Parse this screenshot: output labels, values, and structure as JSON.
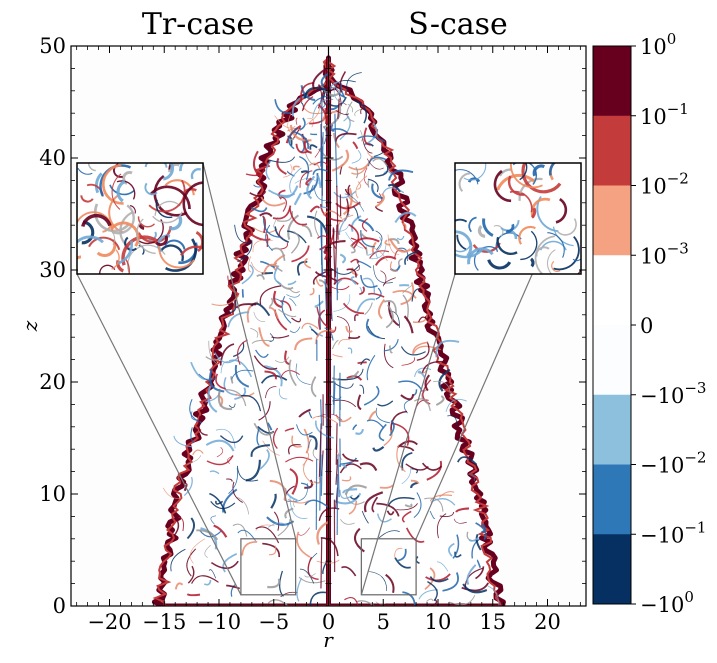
{
  "chart_data": {
    "type": "heatmap",
    "panels": [
      {
        "title": "Tr-case"
      },
      {
        "title": "S-case"
      }
    ],
    "xlabel": "r",
    "ylabel": "z",
    "xlim": [
      -23.5,
      23.5
    ],
    "ylim": [
      0,
      50
    ],
    "xticks": [
      -20,
      -15,
      -10,
      -5,
      0,
      5,
      10,
      15,
      20
    ],
    "xtick_labels": [
      "−20",
      "−15",
      "−10",
      "−5",
      "0",
      "5",
      "10",
      "15",
      "20"
    ],
    "yticks": [
      0,
      10,
      20,
      30,
      40,
      50
    ],
    "ytick_labels": [
      "0",
      "10",
      "20",
      "30",
      "40",
      "50"
    ],
    "colorbar": {
      "scale": "symlog",
      "levels": [
        -1,
        -0.1,
        -0.01,
        -0.001,
        0,
        0.001,
        0.01,
        0.1,
        1
      ],
      "tick_labels_top_to_bottom": [
        {
          "base": "10",
          "exp": "0"
        },
        {
          "base": "10",
          "exp": "−1"
        },
        {
          "base": "10",
          "exp": "−2"
        },
        {
          "base": "10",
          "exp": "−3"
        },
        {
          "base": "0",
          "exp": ""
        },
        {
          "base": "−10",
          "exp": "−3"
        },
        {
          "base": "−10",
          "exp": "−2"
        },
        {
          "base": "−10",
          "exp": "−1"
        },
        {
          "base": "−10",
          "exp": "0"
        }
      ],
      "band_colors_top_to_bottom": [
        "#67001f",
        "#c43b3b",
        "#f4a282",
        "#ffffff",
        "#fbfdff",
        "#8cc0dd",
        "#2f78b7",
        "#053061"
      ]
    },
    "insets": [
      {
        "panel": "Tr-case",
        "source_box_r": [
          -8,
          -3
        ],
        "source_box_z": [
          1,
          6
        ]
      },
      {
        "panel": "S-case",
        "source_box_r": [
          3,
          8
        ],
        "source_box_z": [
          1,
          6
        ]
      }
    ],
    "colors": {
      "positive": "#b2182b",
      "dark_positive": "#67001f",
      "negative": "#2166ac",
      "light_negative": "#6fa8d6"
    }
  }
}
